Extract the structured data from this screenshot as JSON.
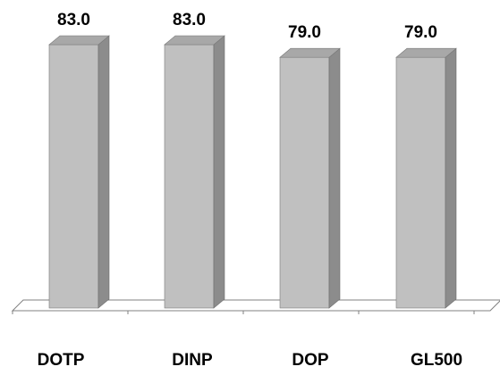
{
  "chart_data": {
    "type": "bar",
    "title": "",
    "xlabel": "",
    "ylabel": "",
    "categories": [
      "DOTP",
      "DINP",
      "DOP",
      "GL500"
    ],
    "values": [
      83.0,
      83.0,
      79.0,
      79.0
    ],
    "value_labels": [
      "83.0",
      "83.0",
      "79.0",
      "79.0"
    ],
    "ylim": [
      0,
      83
    ],
    "style": "3d-columns",
    "grid": false,
    "legend": "none",
    "colors": {
      "bar_front": "#c0c0c0",
      "bar_side": "#8c8c8c",
      "bar_top": "#a8a8a8",
      "floor_line": "#808080"
    }
  }
}
